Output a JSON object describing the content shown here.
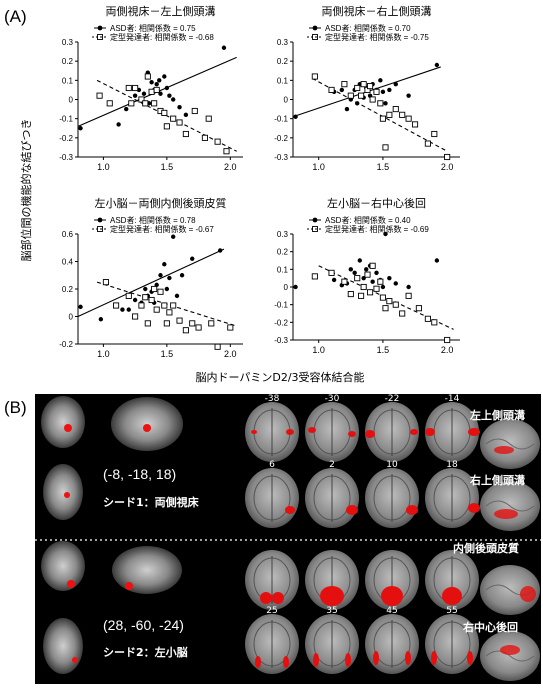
{
  "panel_a": {
    "letter": "(A)",
    "y_axis_label": "脳部位間の機能的な結びつき",
    "x_axis_label": "脳内ドーパミンD2/3受容体結合能"
  },
  "panel_b": {
    "letter": "(B)",
    "seed1": {
      "coords": "(-8, -18, 18)",
      "label": "シード1：両側視床"
    },
    "seed2": {
      "coords": "(28, -60, -24)",
      "label": "シード2：左小脳"
    },
    "slice_labels_row1": [
      "-38",
      "-30",
      "-22",
      "-14"
    ],
    "slice_labels_row2": [
      "6",
      "2",
      "10",
      "18"
    ],
    "slice_labels_row3": [
      "25",
      "35",
      "45",
      "55"
    ],
    "region_labels": [
      "左上側頭溝",
      "右上側頭溝",
      "内側後頭皮質",
      "右中心後回"
    ]
  },
  "chart_data": [
    {
      "type": "scatter",
      "title": "両側視床－左上側頭溝",
      "legend": {
        "asd": "ASD者: 相関係数 = 0.75",
        "td": "定型発達者: 相関係数 = -0.68"
      },
      "xlim": [
        0.8,
        2.1
      ],
      "ylim": [
        -0.3,
        0.3
      ],
      "xticks": [
        "1.0",
        "1.5",
        "2.0"
      ],
      "yticks": [
        "-0.3",
        "-0.2",
        "-0.1",
        "0",
        "0.1",
        "0.2",
        "0.3"
      ],
      "series": [
        {
          "name": "ASD者",
          "marker": "filled-circle",
          "points": [
            [
              0.82,
              -0.15
            ],
            [
              1.12,
              -0.13
            ],
            [
              1.18,
              -0.05
            ],
            [
              1.25,
              0.02
            ],
            [
              1.28,
              0.05
            ],
            [
              1.32,
              0.03
            ],
            [
              1.35,
              0.14
            ],
            [
              1.36,
              -0.02
            ],
            [
              1.38,
              0.09
            ],
            [
              1.4,
              0.05
            ],
            [
              1.42,
              0.08
            ],
            [
              1.44,
              0.1
            ],
            [
              1.45,
              0.03
            ],
            [
              1.48,
              0.12
            ],
            [
              1.5,
              0.06
            ],
            [
              1.52,
              0.02
            ],
            [
              1.55,
              0.0
            ],
            [
              1.6,
              -0.04
            ],
            [
              1.65,
              -0.08
            ],
            [
              1.95,
              0.27
            ]
          ],
          "fit": [
            [
              0.8,
              -0.14
            ],
            [
              2.05,
              0.22
            ]
          ],
          "line": "solid"
        },
        {
          "name": "定型発達者",
          "marker": "open-square",
          "points": [
            [
              0.97,
              0.02
            ],
            [
              1.05,
              -0.02
            ],
            [
              1.2,
              0.06
            ],
            [
              1.22,
              -0.02
            ],
            [
              1.25,
              0.06
            ],
            [
              1.3,
              0.0
            ],
            [
              1.33,
              -0.02
            ],
            [
              1.35,
              0.12
            ],
            [
              1.38,
              0.04
            ],
            [
              1.4,
              -0.02
            ],
            [
              1.42,
              0.05
            ],
            [
              1.45,
              -0.06
            ],
            [
              1.48,
              -0.07
            ],
            [
              1.5,
              -0.14
            ],
            [
              1.55,
              -0.1
            ],
            [
              1.6,
              -0.12
            ],
            [
              1.65,
              -0.18
            ],
            [
              1.72,
              -0.06
            ],
            [
              1.8,
              -0.2
            ],
            [
              1.83,
              -0.1
            ],
            [
              1.9,
              -0.22
            ],
            [
              1.97,
              -0.27
            ]
          ],
          "fit": [
            [
              0.95,
              0.1
            ],
            [
              2.05,
              -0.27
            ]
          ],
          "line": "dashed"
        }
      ]
    },
    {
      "type": "scatter",
      "title": "両側視床－右上側頭溝",
      "legend": {
        "asd": "ASD者: 相関係数 = 0.70",
        "td": "定型発達者: 相関係数 = -0.75"
      },
      "xlim": [
        0.8,
        2.1
      ],
      "ylim": [
        -0.3,
        0.3
      ],
      "xticks": [
        "1.0",
        "1.5",
        "2.0"
      ],
      "yticks": [
        "-0.3",
        "-0.2",
        "-0.1",
        "0",
        "0.1",
        "0.2",
        "0.3"
      ],
      "series": [
        {
          "name": "ASD者",
          "marker": "filled-circle",
          "points": [
            [
              0.82,
              -0.09
            ],
            [
              1.12,
              0.04
            ],
            [
              1.18,
              0.05
            ],
            [
              1.22,
              -0.05
            ],
            [
              1.25,
              0.0
            ],
            [
              1.28,
              0.05
            ],
            [
              1.3,
              -0.02
            ],
            [
              1.32,
              0.08
            ],
            [
              1.35,
              0.01
            ],
            [
              1.37,
              0.06
            ],
            [
              1.4,
              0.02
            ],
            [
              1.42,
              0.08
            ],
            [
              1.45,
              0.05
            ],
            [
              1.48,
              0.1
            ],
            [
              1.5,
              0.04
            ],
            [
              1.52,
              -0.02
            ],
            [
              1.55,
              0.05
            ],
            [
              1.6,
              0.08
            ],
            [
              1.7,
              0.02
            ],
            [
              1.92,
              0.18
            ]
          ],
          "fit": [
            [
              0.8,
              -0.09
            ],
            [
              1.95,
              0.17
            ]
          ],
          "line": "solid"
        },
        {
          "name": "定型発達者",
          "marker": "open-square",
          "points": [
            [
              0.97,
              0.12
            ],
            [
              1.1,
              0.05
            ],
            [
              1.2,
              0.08
            ],
            [
              1.25,
              0.02
            ],
            [
              1.3,
              0.06
            ],
            [
              1.33,
              0.02
            ],
            [
              1.35,
              0.08
            ],
            [
              1.38,
              0.05
            ],
            [
              1.4,
              0.07
            ],
            [
              1.42,
              0.0
            ],
            [
              1.45,
              0.04
            ],
            [
              1.48,
              -0.02
            ],
            [
              1.5,
              -0.1
            ],
            [
              1.52,
              -0.25
            ],
            [
              1.55,
              -0.08
            ],
            [
              1.6,
              -0.05
            ],
            [
              1.65,
              -0.08
            ],
            [
              1.7,
              -0.1
            ],
            [
              1.75,
              -0.13
            ],
            [
              1.85,
              -0.23
            ],
            [
              1.9,
              -0.18
            ],
            [
              2.0,
              -0.3
            ]
          ],
          "fit": [
            [
              0.95,
              0.11
            ],
            [
              2.0,
              -0.27
            ]
          ],
          "line": "dashed"
        }
      ]
    },
    {
      "type": "scatter",
      "title": "左小脳－両側内側後頭皮質",
      "legend": {
        "asd": "ASD者: 相関係数 = 0.78",
        "td": "定型発達者: 相関係数 = -0.67"
      },
      "xlim": [
        0.8,
        2.1
      ],
      "ylim": [
        -0.2,
        0.6
      ],
      "xticks": [
        "1.0",
        "1.5",
        "2.0"
      ],
      "yticks": [
        "-0.2",
        "0",
        "0.2",
        "0.4",
        "0.6"
      ],
      "series": [
        {
          "name": "ASD者",
          "marker": "filled-circle",
          "points": [
            [
              0.82,
              0.07
            ],
            [
              0.98,
              -0.02
            ],
            [
              1.15,
              0.05
            ],
            [
              1.2,
              0.05
            ],
            [
              1.25,
              0.12
            ],
            [
              1.3,
              0.1
            ],
            [
              1.33,
              0.2
            ],
            [
              1.35,
              0.15
            ],
            [
              1.38,
              0.18
            ],
            [
              1.4,
              0.1
            ],
            [
              1.42,
              0.23
            ],
            [
              1.45,
              0.3
            ],
            [
              1.48,
              0.38
            ],
            [
              1.5,
              0.2
            ],
            [
              1.52,
              0.28
            ],
            [
              1.55,
              0.58
            ],
            [
              1.58,
              0.15
            ],
            [
              1.62,
              0.3
            ],
            [
              1.7,
              0.42
            ],
            [
              1.92,
              0.48
            ]
          ],
          "fit": [
            [
              0.8,
              0.0
            ],
            [
              1.95,
              0.49
            ]
          ],
          "line": "solid"
        },
        {
          "name": "定型発達者",
          "marker": "open-square",
          "points": [
            [
              1.02,
              0.25
            ],
            [
              1.1,
              0.08
            ],
            [
              1.2,
              0.15
            ],
            [
              1.25,
              0.0
            ],
            [
              1.3,
              0.08
            ],
            [
              1.33,
              0.14
            ],
            [
              1.35,
              -0.05
            ],
            [
              1.38,
              0.12
            ],
            [
              1.4,
              0.2
            ],
            [
              1.42,
              0.05
            ],
            [
              1.45,
              0.18
            ],
            [
              1.48,
              0.08
            ],
            [
              1.5,
              -0.05
            ],
            [
              1.52,
              0.03
            ],
            [
              1.55,
              0.08
            ],
            [
              1.6,
              -0.03
            ],
            [
              1.65,
              -0.1
            ],
            [
              1.7,
              -0.05
            ],
            [
              1.75,
              -0.08
            ],
            [
              1.85,
              -0.05
            ],
            [
              1.9,
              -0.22
            ],
            [
              2.0,
              -0.08
            ]
          ],
          "fit": [
            [
              0.95,
              0.25
            ],
            [
              2.05,
              -0.07
            ]
          ],
          "line": "dashed"
        }
      ]
    },
    {
      "type": "scatter",
      "title": "左小脳－右中心後回",
      "legend": {
        "asd": "ASD者: 相関係数 = 0.40",
        "td": "定型発達者: 相関係数 = -0.69"
      },
      "xlim": [
        0.8,
        2.1
      ],
      "ylim": [
        -0.3,
        0.3
      ],
      "xticks": [
        "1.0",
        "1.5",
        "2.0"
      ],
      "yticks": [
        "-0.3",
        "-0.2",
        "-0.1",
        "0",
        "0.1",
        "0.2",
        "0.3"
      ],
      "series": [
        {
          "name": "ASD者",
          "marker": "filled-circle",
          "points": [
            [
              0.82,
              0.0
            ],
            [
              1.12,
              0.04
            ],
            [
              1.18,
              0.01
            ],
            [
              1.22,
              0.02
            ],
            [
              1.25,
              0.1
            ],
            [
              1.28,
              0.08
            ],
            [
              1.3,
              0.05
            ],
            [
              1.32,
              0.15
            ],
            [
              1.35,
              0.05
            ],
            [
              1.37,
              0.1
            ],
            [
              1.4,
              0.12
            ],
            [
              1.42,
              0.03
            ],
            [
              1.45,
              0.08
            ],
            [
              1.48,
              0.04
            ],
            [
              1.5,
              0.0
            ],
            [
              1.52,
              0.3
            ],
            [
              1.55,
              0.05
            ],
            [
              1.6,
              0.02
            ],
            [
              1.7,
              0.0
            ],
            [
              1.92,
              0.15
            ]
          ],
          "fit": [
            [
              0.8,
              0.0
            ],
            [
              1.95,
              0.08
            ]
          ],
          "line": "none"
        },
        {
          "name": "定型発達者",
          "marker": "open-square",
          "points": [
            [
              0.97,
              0.06
            ],
            [
              1.1,
              0.08
            ],
            [
              1.2,
              0.03
            ],
            [
              1.25,
              -0.04
            ],
            [
              1.3,
              0.05
            ],
            [
              1.33,
              -0.05
            ],
            [
              1.35,
              0.0
            ],
            [
              1.38,
              0.07
            ],
            [
              1.4,
              -0.03
            ],
            [
              1.42,
              0.12
            ],
            [
              1.45,
              -0.01
            ],
            [
              1.48,
              0.03
            ],
            [
              1.5,
              -0.06
            ],
            [
              1.52,
              -0.12
            ],
            [
              1.55,
              -0.08
            ],
            [
              1.6,
              -0.1
            ],
            [
              1.65,
              -0.15
            ],
            [
              1.7,
              -0.05
            ],
            [
              1.78,
              -0.12
            ],
            [
              1.85,
              -0.18
            ],
            [
              1.9,
              -0.2
            ],
            [
              2.0,
              -0.3
            ]
          ],
          "fit": [
            [
              1.0,
              0.12
            ],
            [
              2.05,
              -0.24
            ]
          ],
          "line": "dashed"
        }
      ]
    }
  ]
}
